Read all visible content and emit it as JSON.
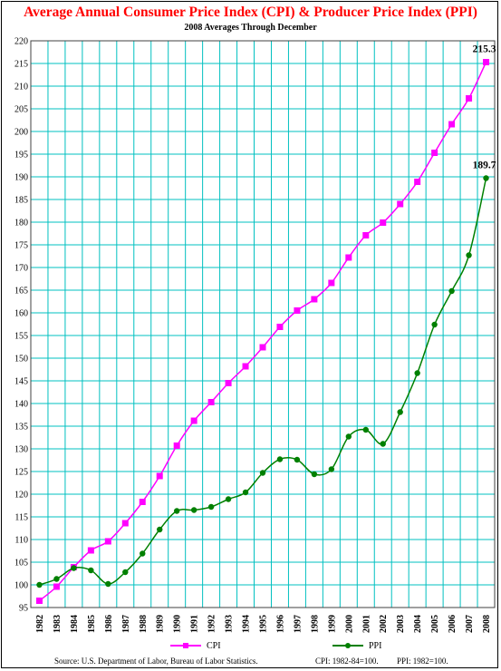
{
  "header": {
    "title": "Average Annual Consumer Price Index (CPI) & Producer Price Index (PPI)",
    "subtitle": "2008 Averages Through December"
  },
  "footer": {
    "source": "Source:  U.S. Department of Labor, Bureau of Labor Statistics.",
    "cpi_note": "CPI:  1982-84=100.",
    "ppi_note": "PPI:  1982=100."
  },
  "colors": {
    "cpi": "#ff00ff",
    "ppi": "#008000",
    "grid": "#00c0c0",
    "title": "#ff0000"
  },
  "chart_data": {
    "type": "line",
    "title": "Average Annual Consumer Price Index (CPI) & Producer Price Index (PPI)",
    "subtitle": "2008 Averages Through December",
    "categories": [
      "1982",
      "1983",
      "1984",
      "1985",
      "1986",
      "1987",
      "1988",
      "1989",
      "1990",
      "1991",
      "1992",
      "1993",
      "1994",
      "1995",
      "1996",
      "1997",
      "1998",
      "1999",
      "2000",
      "2001",
      "2002",
      "2003",
      "2004",
      "2005",
      "2006",
      "2007",
      "2008"
    ],
    "ylim": [
      95,
      220
    ],
    "ytick_step": 5,
    "grid": true,
    "legend_placement": "bottom",
    "series": [
      {
        "name": "CPI",
        "color": "#ff00ff",
        "marker": "square",
        "values": [
          96.5,
          99.6,
          103.9,
          107.6,
          109.6,
          113.6,
          118.3,
          124.0,
          130.7,
          136.2,
          140.3,
          144.5,
          148.2,
          152.4,
          156.9,
          160.5,
          163.0,
          166.6,
          172.2,
          177.1,
          179.9,
          184.0,
          188.9,
          195.3,
          201.6,
          207.3,
          215.3
        ]
      },
      {
        "name": "PPI",
        "color": "#008000",
        "marker": "circle",
        "values": [
          100.0,
          101.3,
          103.7,
          103.2,
          100.2,
          102.8,
          106.9,
          112.2,
          116.3,
          116.5,
          117.2,
          118.9,
          120.4,
          124.7,
          127.7,
          127.6,
          124.4,
          125.5,
          132.7,
          134.2,
          131.1,
          138.1,
          146.7,
          157.4,
          164.8,
          172.7,
          189.7
        ]
      }
    ],
    "annotations": [
      {
        "series": "CPI",
        "category": "2008",
        "text": "215.3"
      },
      {
        "series": "PPI",
        "category": "2008",
        "text": "189.7"
      }
    ]
  }
}
